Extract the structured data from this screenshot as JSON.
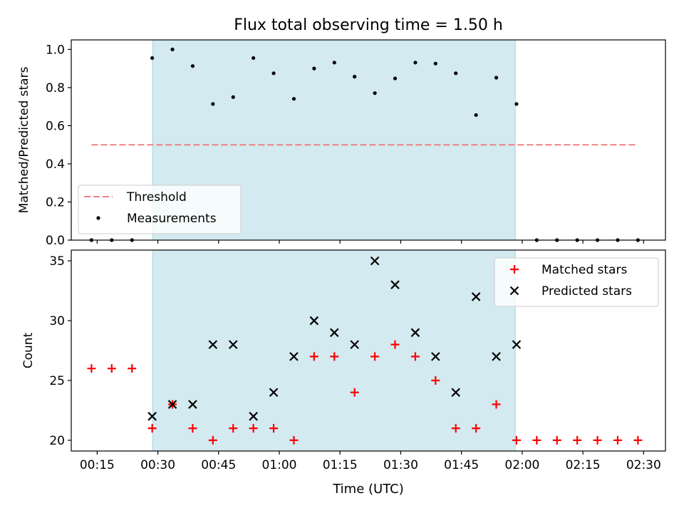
{
  "title": "Flux total observing time = 1.50 h",
  "x_ticks": [
    "00:15",
    "00:30",
    "00:45",
    "01:00",
    "01:15",
    "01:30",
    "01:45",
    "02:00",
    "02:15",
    "02:30"
  ],
  "chart_data": [
    {
      "type": "scatter",
      "ylabel": "Matched/Predicted stars",
      "ylim": [
        0,
        1.05
      ],
      "yticks": [
        "0.0",
        "0.2",
        "0.4",
        "0.6",
        "0.8",
        "1.0"
      ],
      "xlim_min": [
        8.6,
        155.4
      ],
      "shaded_span_min": [
        28.7,
        118.3
      ],
      "x_min": [
        13.6,
        18.6,
        23.6,
        28.6,
        33.6,
        38.6,
        43.6,
        48.6,
        53.6,
        58.6,
        63.6,
        68.6,
        73.6,
        78.6,
        83.6,
        88.6,
        93.6,
        98.6,
        103.6,
        108.6,
        113.6,
        118.6,
        123.6,
        128.6,
        133.6,
        138.6,
        143.6,
        148.6
      ],
      "threshold": {
        "name": "Threshold",
        "y": 0.5,
        "x_range_min": [
          13.6,
          148.6
        ],
        "color": "#f08080"
      },
      "series": [
        {
          "name": "Measurements",
          "color": "#000000",
          "values": [
            0,
            0,
            0,
            0.955,
            1.0,
            0.913,
            0.714,
            0.75,
            0.955,
            0.875,
            0.741,
            0.9,
            0.931,
            0.857,
            0.771,
            0.848,
            0.931,
            0.926,
            0.875,
            0.656,
            0.852,
            0.714,
            0,
            0,
            0,
            0,
            0,
            0
          ]
        }
      ],
      "legend_position": "lower-left"
    },
    {
      "type": "scatter",
      "xlabel": "Time (UTC)",
      "ylabel": "Count",
      "ylim": [
        19.1,
        35.9
      ],
      "yticks": [
        "20",
        "25",
        "30",
        "35"
      ],
      "xlim_min": [
        8.6,
        155.4
      ],
      "shaded_span_min": [
        28.7,
        118.3
      ],
      "x_min": [
        13.6,
        18.6,
        23.6,
        28.6,
        33.6,
        38.6,
        43.6,
        48.6,
        53.6,
        58.6,
        63.6,
        68.6,
        73.6,
        78.6,
        83.6,
        88.6,
        93.6,
        98.6,
        103.6,
        108.6,
        113.6,
        118.6,
        123.6,
        128.6,
        133.6,
        138.6,
        143.6,
        148.6
      ],
      "series": [
        {
          "name": "Matched stars",
          "marker": "plus",
          "color": "#ff0000",
          "values": [
            26,
            26,
            26,
            21,
            23,
            21,
            20,
            21,
            21,
            21,
            20,
            27,
            27,
            24,
            27,
            28,
            27,
            25,
            21,
            21,
            23,
            20,
            20,
            20,
            20,
            20,
            20,
            20
          ]
        },
        {
          "name": "Predicted stars",
          "marker": "x",
          "color": "#000000",
          "values": [
            null,
            null,
            null,
            22,
            23,
            23,
            28,
            28,
            22,
            24,
            27,
            30,
            29,
            28,
            35,
            33,
            29,
            27,
            24,
            32,
            27,
            28,
            null,
            null,
            null,
            null,
            null,
            null
          ]
        }
      ],
      "legend_position": "upper-right"
    }
  ],
  "colors": {
    "shade": "#d2eaf0",
    "shade_edge": "#a9d3de"
  }
}
